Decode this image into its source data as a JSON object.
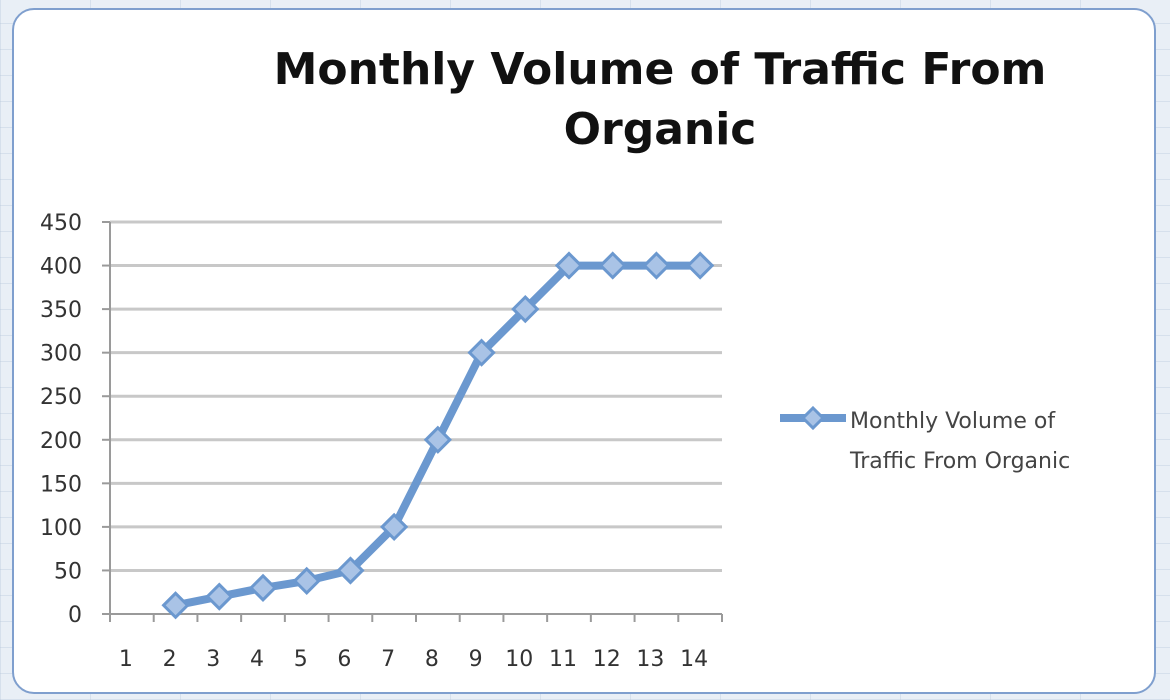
{
  "chart_data": {
    "type": "line",
    "title": "Monthly Volume of Traffic From Organic",
    "xlabel": "",
    "ylabel": "",
    "categories": [
      "1",
      "2",
      "3",
      "4",
      "5",
      "6",
      "7",
      "8",
      "9",
      "10",
      "11",
      "12",
      "13",
      "14"
    ],
    "x": [
      1,
      2,
      3,
      4,
      5,
      6,
      7,
      8,
      9,
      10,
      11,
      12,
      13,
      14
    ],
    "ylim": [
      0,
      450
    ],
    "yticks": [
      0,
      50,
      100,
      150,
      200,
      250,
      300,
      350,
      400,
      450
    ],
    "grid": true,
    "legend": "right",
    "series": [
      {
        "name": "Monthly Volume of Traffic From Organic",
        "marker": "diamond",
        "values": [
          null,
          10,
          20,
          30,
          38,
          50,
          100,
          200,
          300,
          350,
          400,
          400,
          400,
          400
        ]
      }
    ],
    "colors": {
      "series": "#6b98cf",
      "grid": "#c8c8c8",
      "axis": "#9a9a9a"
    }
  }
}
